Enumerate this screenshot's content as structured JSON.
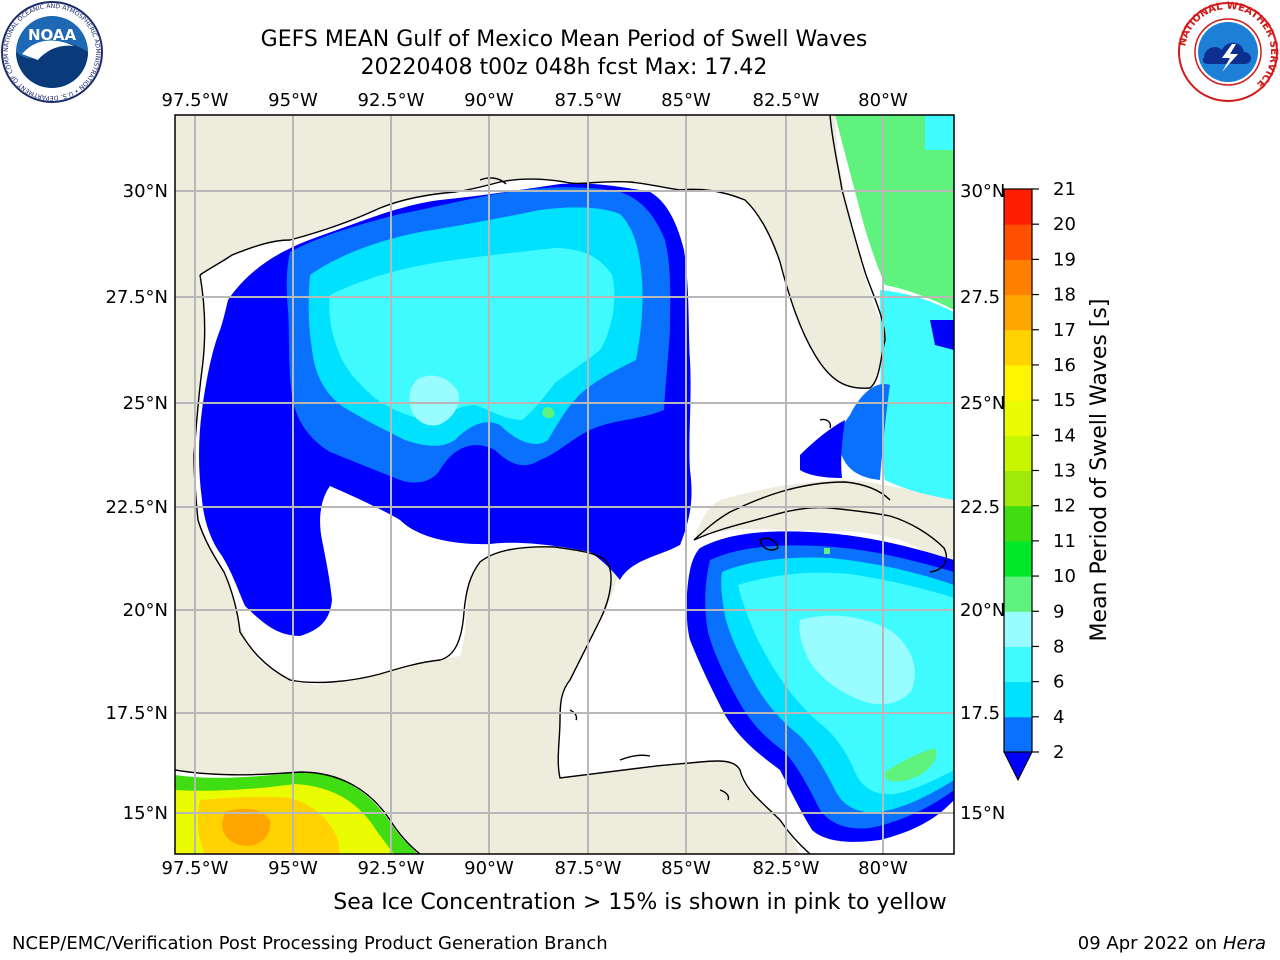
{
  "header": {
    "title_line1": "GEFS MEAN Gulf of Mexico Mean Period of Swell Waves",
    "title_line2": "20220408 t00z 048h fcst   Max: 17.42"
  },
  "map": {
    "lon_labels": [
      "97.5°W",
      "95°W",
      "92.5°W",
      "90°W",
      "87.5°W",
      "85°W",
      "82.5°W",
      "80°W"
    ],
    "lat_labels_left": [
      "30°N",
      "27.5°N",
      "25°N",
      "22.5°N",
      "20°N",
      "17.5°N",
      "15°N"
    ],
    "lat_labels_right": [
      "30°N",
      "27.5",
      "25°N",
      "22.5",
      "20°N",
      "17.5",
      "15°N"
    ],
    "extent": {
      "lon": [
        -98,
        -78
      ],
      "lat": [
        14,
        31.7
      ]
    },
    "gridlines": true,
    "colors": {
      "land": "#eeecdd",
      "water": "#ffffff",
      "grid": "#b8b8b8",
      "coast": "#000000"
    }
  },
  "colorbar": {
    "label": "Mean Period of Swell Waves [s]",
    "ticks": [
      "2",
      "4",
      "6",
      "8",
      "9",
      "10",
      "11",
      "12",
      "13",
      "14",
      "15",
      "16",
      "17",
      "18",
      "19",
      "20",
      "21"
    ],
    "colors": [
      "#0a71ff",
      "#00e1ff",
      "#3ffbff",
      "#99fdff",
      "#5ff27d",
      "#00e828",
      "#41dd13",
      "#9fe90b",
      "#c8f500",
      "#ecfc00",
      "#fff500",
      "#ffd200",
      "#ffa500",
      "#ff8000",
      "#ff5000",
      "#ff1e00"
    ],
    "under_color": "#0000ff"
  },
  "logos": {
    "noaa_text": "NOAA",
    "noaa_ring": "NATIONAL OCEANIC AND ATMOSPHERIC ADMINISTRATION • U.S. DEPARTMENT OF COMMERCE",
    "nws_ring": "NATIONAL WEATHER SERVICE"
  },
  "footer": {
    "note": "Sea Ice Concentration > 15% is shown in pink to yellow",
    "left": "NCEP/EMC/Verification Post Processing Product Generation Branch",
    "date": "09 Apr 2022 on",
    "machine": "Hera"
  }
}
